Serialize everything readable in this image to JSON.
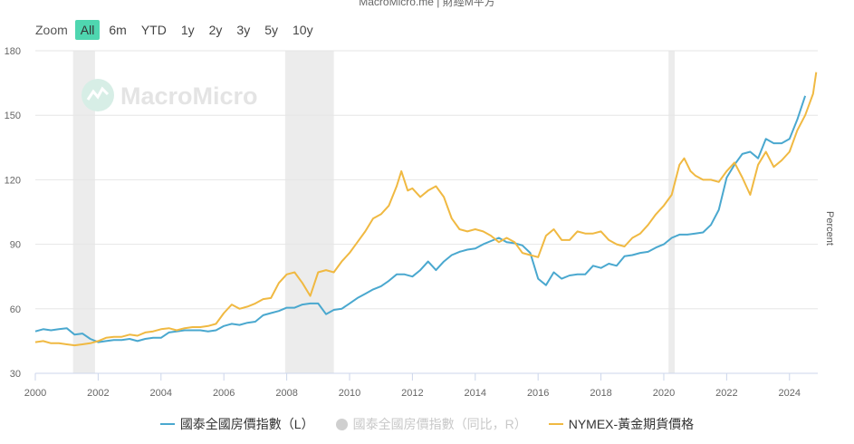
{
  "header": {
    "credit": "MacroMicro.me | 財經M平方"
  },
  "zoom": {
    "label": "Zoom",
    "buttons": [
      "All",
      "6m",
      "YTD",
      "1y",
      "2y",
      "3y",
      "5y",
      "10y"
    ],
    "active": "All"
  },
  "watermark": "MacroMicro",
  "colors": {
    "blue": "#4aa8cf",
    "gold": "#f0b942",
    "recession": "#ececec",
    "legend_hidden": "#c8c8c8"
  },
  "chart_data": {
    "type": "line",
    "y_title": "Percent",
    "x_range": [
      2000,
      2024.9
    ],
    "y_range": [
      30,
      180
    ],
    "x_ticks": [
      "2000",
      "2002",
      "2004",
      "2006",
      "2008",
      "2010",
      "2012",
      "2014",
      "2016",
      "2018",
      "2020",
      "2022",
      "2024"
    ],
    "y_ticks": [
      "30",
      "60",
      "90",
      "120",
      "150",
      "180"
    ],
    "recession_bands": [
      [
        2001.2,
        2001.9
      ],
      [
        2007.95,
        2009.5
      ],
      [
        2020.15,
        2020.35
      ]
    ],
    "series": [
      {
        "name": "國泰全國房價指數（L）",
        "color": "#4aa8cf",
        "visible": true,
        "x": [
          2000.0,
          2000.25,
          2000.5,
          2000.75,
          2001.0,
          2001.25,
          2001.5,
          2001.75,
          2002.0,
          2002.25,
          2002.5,
          2002.75,
          2003.0,
          2003.25,
          2003.5,
          2003.75,
          2004.0,
          2004.25,
          2004.5,
          2004.75,
          2005.0,
          2005.25,
          2005.5,
          2005.75,
          2006.0,
          2006.25,
          2006.5,
          2006.75,
          2007.0,
          2007.25,
          2007.5,
          2007.75,
          2008.0,
          2008.25,
          2008.5,
          2008.75,
          2009.0,
          2009.25,
          2009.5,
          2009.75,
          2010.0,
          2010.25,
          2010.5,
          2010.75,
          2011.0,
          2011.25,
          2011.5,
          2011.75,
          2012.0,
          2012.25,
          2012.5,
          2012.75,
          2013.0,
          2013.25,
          2013.5,
          2013.75,
          2014.0,
          2014.25,
          2014.5,
          2014.75,
          2015.0,
          2015.25,
          2015.5,
          2015.75,
          2016.0,
          2016.25,
          2016.5,
          2016.75,
          2017.0,
          2017.25,
          2017.5,
          2017.75,
          2018.0,
          2018.25,
          2018.5,
          2018.75,
          2019.0,
          2019.25,
          2019.5,
          2019.75,
          2020.0,
          2020.25,
          2020.5,
          2020.75,
          2021.0,
          2021.25,
          2021.5,
          2021.75,
          2022.0,
          2022.25,
          2022.5,
          2022.75,
          2023.0,
          2023.25,
          2023.5,
          2023.75,
          2024.0,
          2024.25,
          2024.5
        ],
        "values": [
          49.5,
          50.5,
          50,
          50.5,
          51,
          48,
          48.5,
          46,
          44.5,
          45,
          45.5,
          45.5,
          46,
          45,
          46,
          46.5,
          46.5,
          49,
          49.5,
          50,
          50,
          50,
          49.5,
          50,
          52,
          53,
          52.5,
          53.5,
          54,
          57,
          58,
          59,
          60.5,
          60.5,
          62,
          62.5,
          62.5,
          57.5,
          59.5,
          60,
          62.5,
          65,
          67,
          69,
          70.5,
          73,
          76,
          76,
          75,
          78,
          82,
          78,
          82,
          85,
          86.5,
          87.5,
          88,
          90,
          91.5,
          93,
          91,
          90.5,
          89.5,
          86,
          74,
          71,
          77,
          74,
          75.5,
          76,
          76,
          80,
          79,
          81,
          80,
          84.5,
          85,
          86,
          86.5,
          88.5,
          90,
          93,
          94.5,
          94.5,
          95,
          95.5,
          99,
          106,
          121,
          127,
          132,
          133,
          130,
          139,
          137,
          137,
          139,
          148,
          159
        ]
      },
      {
        "name": "國泰全國房價指數（同比，R）",
        "color": "#c8c8c8",
        "visible": false,
        "x": [],
        "values": []
      },
      {
        "name": "NYMEX-黃金期貨價格",
        "color": "#f0b942",
        "visible": true,
        "x": [
          2000.0,
          2000.25,
          2000.5,
          2000.75,
          2001.0,
          2001.25,
          2001.5,
          2001.75,
          2002.0,
          2002.25,
          2002.5,
          2002.75,
          2003.0,
          2003.25,
          2003.5,
          2003.75,
          2004.0,
          2004.25,
          2004.5,
          2004.75,
          2005.0,
          2005.25,
          2005.5,
          2005.75,
          2006.0,
          2006.25,
          2006.5,
          2006.75,
          2007.0,
          2007.25,
          2007.5,
          2007.75,
          2008.0,
          2008.25,
          2008.5,
          2008.75,
          2009.0,
          2009.25,
          2009.5,
          2009.75,
          2010.0,
          2010.25,
          2010.5,
          2010.75,
          2011.0,
          2011.25,
          2011.5,
          2011.65,
          2011.85,
          2012.0,
          2012.25,
          2012.5,
          2012.75,
          2013.0,
          2013.25,
          2013.5,
          2013.75,
          2014.0,
          2014.25,
          2014.5,
          2014.75,
          2015.0,
          2015.25,
          2015.5,
          2015.75,
          2016.0,
          2016.25,
          2016.5,
          2016.75,
          2017.0,
          2017.25,
          2017.5,
          2017.75,
          2018.0,
          2018.25,
          2018.5,
          2018.75,
          2019.0,
          2019.25,
          2019.5,
          2019.75,
          2020.0,
          2020.25,
          2020.5,
          2020.65,
          2020.85,
          2021.0,
          2021.25,
          2021.5,
          2021.75,
          2022.0,
          2022.25,
          2022.5,
          2022.75,
          2023.0,
          2023.25,
          2023.5,
          2023.75,
          2024.0,
          2024.25,
          2024.5,
          2024.75,
          2024.85
        ],
        "values": [
          44.5,
          45,
          44,
          44,
          43.5,
          43,
          43.5,
          44,
          45,
          46.5,
          47,
          47,
          48,
          47.5,
          49,
          49.5,
          50.5,
          51,
          50,
          51,
          51.5,
          51.5,
          52,
          53,
          58,
          62,
          60,
          61,
          62.5,
          64.5,
          65,
          72,
          76,
          77,
          72,
          66,
          77,
          78,
          77,
          82,
          86,
          91,
          96,
          102,
          104,
          108,
          117,
          124,
          115,
          116,
          112,
          115,
          117,
          112,
          102,
          97,
          96,
          97,
          96,
          94,
          91,
          93,
          91,
          86,
          85,
          84,
          94,
          97,
          92,
          92,
          96,
          95,
          95,
          96,
          92,
          90,
          89,
          93,
          95,
          99,
          104,
          108,
          113,
          127,
          130,
          124,
          122,
          120,
          120,
          119,
          124,
          128,
          121,
          113,
          127,
          133,
          126,
          129,
          133,
          143,
          150,
          160,
          170
        ]
      }
    ],
    "legend_position": "bottom-center"
  }
}
